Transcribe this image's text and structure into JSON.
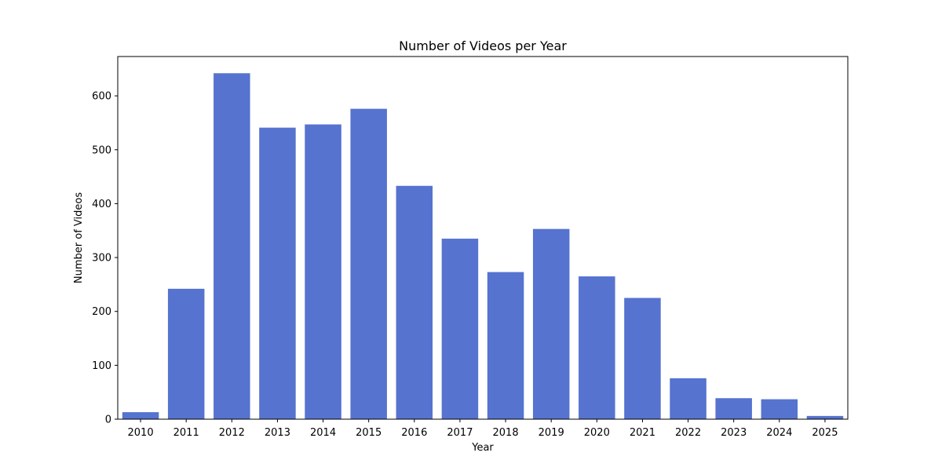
{
  "chart_data": {
    "type": "bar",
    "title": "Number of Videos per Year",
    "xlabel": "Year",
    "ylabel": "Number of Videos",
    "categories": [
      "2010",
      "2011",
      "2012",
      "2013",
      "2014",
      "2015",
      "2016",
      "2017",
      "2018",
      "2019",
      "2020",
      "2021",
      "2022",
      "2023",
      "2024",
      "2025"
    ],
    "values": [
      13,
      242,
      642,
      541,
      547,
      576,
      433,
      335,
      273,
      353,
      265,
      225,
      76,
      39,
      37,
      6
    ],
    "ylim": [
      0,
      673
    ],
    "yticks": [
      0,
      100,
      200,
      300,
      400,
      500,
      600
    ],
    "bar_color": "#5573cf",
    "grid": false,
    "legend": "none"
  }
}
